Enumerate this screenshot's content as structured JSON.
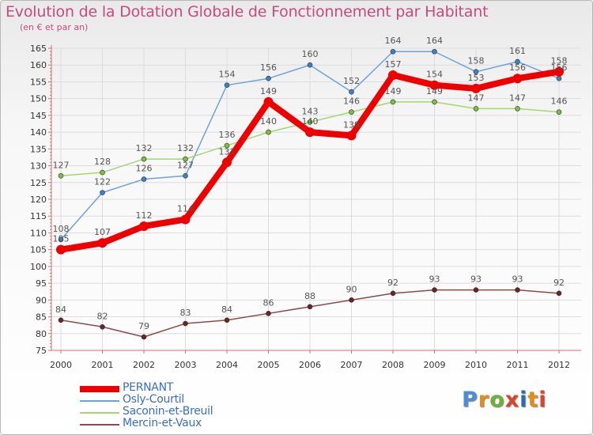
{
  "title": "Evolution de la Dotation Globale de Fonctionnement par Habitant",
  "subtitle": "(en € et par an)",
  "logo": {
    "text": "Proxiti",
    "colors": [
      "#4c8ed6",
      "#e0901a",
      "#6db23a",
      "#d8452a",
      "#2d6ab5",
      "#e0901a",
      "#d8452a"
    ]
  },
  "colors": {
    "title": "#c84a7e",
    "axis": "#d07070",
    "grid": "#dcdcdc",
    "tick_text": "#333333",
    "value_text": "#555555",
    "legend_text": "#3a6fbf"
  },
  "chart_data": {
    "type": "line",
    "title": "Evolution de la Dotation Globale de Fonctionnement par Habitant",
    "subtitle": "(en € et par an)",
    "xlabel": "",
    "ylabel": "",
    "ylim": [
      75,
      165
    ],
    "ytick_step": 5,
    "grid": true,
    "legend": "bottom-left",
    "categories": [
      "2000",
      "2001",
      "2002",
      "2003",
      "2004",
      "2005",
      "2006",
      "2007",
      "2008",
      "2009",
      "2010",
      "2011",
      "2012"
    ],
    "series": [
      {
        "name": "PERNANT",
        "color": "#ee0000",
        "marker": "#ee0000",
        "emphasis": true,
        "values": [
          105,
          107,
          112,
          114,
          131,
          149,
          140,
          139,
          157,
          154,
          153,
          156,
          158
        ]
      },
      {
        "name": "Osly-Courtil",
        "color": "#6fa2d6",
        "marker": "#3a82c4",
        "emphasis": false,
        "values": [
          108,
          122,
          126,
          127,
          154,
          156,
          160,
          152,
          164,
          164,
          158,
          161,
          156
        ]
      },
      {
        "name": "Saconin-et-Breuil",
        "color": "#a4d86e",
        "marker": "#7cc13c",
        "emphasis": false,
        "values": [
          127,
          128,
          132,
          132,
          136,
          140,
          143,
          146,
          149,
          149,
          147,
          147,
          146
        ]
      },
      {
        "name": "Mercin-et-Vaux",
        "color": "#8c4a4a",
        "marker": "#6b2424",
        "emphasis": false,
        "values": [
          84,
          82,
          79,
          83,
          84,
          86,
          88,
          90,
          92,
          93,
          93,
          93,
          92
        ]
      }
    ]
  }
}
